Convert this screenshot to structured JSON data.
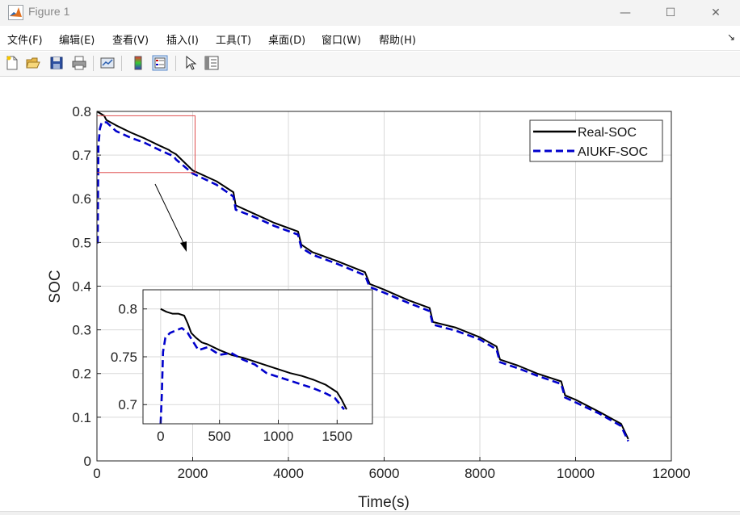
{
  "window": {
    "title": "Figure 1",
    "minimize": "—",
    "maximize": "☐",
    "close": "✕"
  },
  "menu": [
    {
      "name": "menu-file",
      "label": "文件(F)"
    },
    {
      "name": "menu-edit",
      "label": "编辑(E)"
    },
    {
      "name": "menu-view",
      "label": "查看(V)"
    },
    {
      "name": "menu-insert",
      "label": "插入(I)"
    },
    {
      "name": "menu-tools",
      "label": "工具(T)"
    },
    {
      "name": "menu-desktop",
      "label": "桌面(D)"
    },
    {
      "name": "menu-window",
      "label": "窗口(W)"
    },
    {
      "name": "menu-help",
      "label": "帮助(H)"
    }
  ],
  "menu_overflow": "↘",
  "toolbar": [
    "new-figure-icon",
    "open-file-icon",
    "save-icon",
    "print-icon",
    "link-plot-icon",
    "colorbar-icon",
    "legend-icon",
    "pointer-icon",
    "property-inspector-icon"
  ],
  "colors": {
    "real": "#000000",
    "aiukf": "#0000cc",
    "zoom_box": "#e05050",
    "grid": "#d9d9d9"
  },
  "chart_data": [
    {
      "type": "line",
      "title": "",
      "xlabel": "Time(s)",
      "ylabel": "SOC",
      "xlim": [
        0,
        12000
      ],
      "ylim": [
        0,
        0.8
      ],
      "xticks": [
        0,
        2000,
        4000,
        6000,
        8000,
        10000,
        12000
      ],
      "xtick_labels": [
        "0",
        "2000",
        "4000",
        "6000",
        "8000",
        "10000",
        "12000"
      ],
      "yticks": [
        0,
        0.1,
        0.2,
        0.3,
        0.4,
        0.5,
        0.6,
        0.7,
        0.8
      ],
      "ytick_labels": [
        "0",
        "0.1",
        "0.2",
        "0.3",
        "0.4",
        "0.5",
        "0.6",
        "0.7",
        "0.8"
      ],
      "grid": true,
      "legend": "top-right",
      "series": [
        {
          "name": "Real-SOC",
          "style": "solid",
          "x": [
            0,
            150,
            200,
            400,
            700,
            1000,
            1300,
            1500,
            1550,
            1650,
            2000,
            2500,
            2850,
            2900,
            3300,
            3700,
            4200,
            4270,
            4500,
            5000,
            5600,
            5700,
            6000,
            6500,
            6950,
            7020,
            7500,
            8000,
            8350,
            8420,
            8800,
            9200,
            9700,
            9780,
            10000,
            10500,
            10950,
            11100
          ],
          "y": [
            0.8,
            0.79,
            0.78,
            0.768,
            0.752,
            0.738,
            0.722,
            0.712,
            0.708,
            0.702,
            0.665,
            0.64,
            0.615,
            0.585,
            0.565,
            0.545,
            0.525,
            0.495,
            0.478,
            0.458,
            0.432,
            0.405,
            0.392,
            0.368,
            0.35,
            0.318,
            0.305,
            0.283,
            0.262,
            0.232,
            0.218,
            0.2,
            0.182,
            0.15,
            0.14,
            0.112,
            0.085,
            0.05
          ]
        },
        {
          "name": "AIUKF-SOC",
          "style": "dashed",
          "x": [
            0,
            15,
            30,
            60,
            100,
            200,
            250,
            400,
            700,
            1000,
            1300,
            1500,
            1600,
            1650,
            2000,
            2500,
            2850,
            2900,
            3300,
            3700,
            4200,
            4270,
            4500,
            5000,
            5600,
            5700,
            6000,
            6500,
            6950,
            7020,
            7500,
            8000,
            8350,
            8420,
            8800,
            9200,
            9700,
            9780,
            10000,
            10500,
            10950,
            11100
          ],
          "y": [
            0.5,
            0.5,
            0.72,
            0.76,
            0.775,
            0.775,
            0.77,
            0.755,
            0.74,
            0.728,
            0.712,
            0.702,
            0.698,
            0.69,
            0.658,
            0.632,
            0.605,
            0.575,
            0.558,
            0.538,
            0.518,
            0.488,
            0.472,
            0.452,
            0.425,
            0.398,
            0.385,
            0.362,
            0.343,
            0.312,
            0.298,
            0.278,
            0.255,
            0.226,
            0.212,
            0.195,
            0.176,
            0.145,
            0.134,
            0.108,
            0.08,
            0.045
          ]
        }
      ],
      "zoom_region": {
        "x": [
          0,
          2050
        ],
        "y": [
          0.66,
          0.79
        ]
      }
    },
    {
      "type": "line",
      "title": "",
      "xlim": [
        -150,
        1800
      ],
      "ylim": [
        0.68,
        0.82
      ],
      "xticks": [
        0,
        500,
        1000,
        1500
      ],
      "xtick_labels": [
        "0",
        "500",
        "1000",
        "1500"
      ],
      "yticks": [
        0.7,
        0.75,
        0.8
      ],
      "ytick_labels": [
        "0.7",
        "0.75",
        "0.8"
      ],
      "grid": true,
      "series": [
        {
          "name": "Real-SOC",
          "style": "solid",
          "x": [
            0,
            50,
            100,
            150,
            200,
            230,
            260,
            300,
            350,
            400,
            500,
            600,
            700,
            800,
            900,
            1000,
            1100,
            1200,
            1300,
            1400,
            1500,
            1540,
            1580
          ],
          "y": [
            0.8,
            0.797,
            0.795,
            0.795,
            0.793,
            0.785,
            0.775,
            0.77,
            0.765,
            0.763,
            0.757,
            0.752,
            0.749,
            0.745,
            0.741,
            0.737,
            0.733,
            0.73,
            0.726,
            0.721,
            0.713,
            0.705,
            0.695
          ]
        },
        {
          "name": "AIUKF-SOC",
          "style": "dashed",
          "x": [
            0,
            10,
            20,
            40,
            80,
            120,
            180,
            230,
            280,
            320,
            400,
            500,
            600,
            700,
            800,
            900,
            1000,
            1100,
            1200,
            1300,
            1400,
            1480,
            1560
          ],
          "y": [
            0.68,
            0.71,
            0.755,
            0.77,
            0.775,
            0.777,
            0.78,
            0.775,
            0.765,
            0.757,
            0.76,
            0.752,
            0.754,
            0.747,
            0.742,
            0.733,
            0.729,
            0.725,
            0.721,
            0.717,
            0.712,
            0.707,
            0.695
          ]
        }
      ]
    }
  ]
}
